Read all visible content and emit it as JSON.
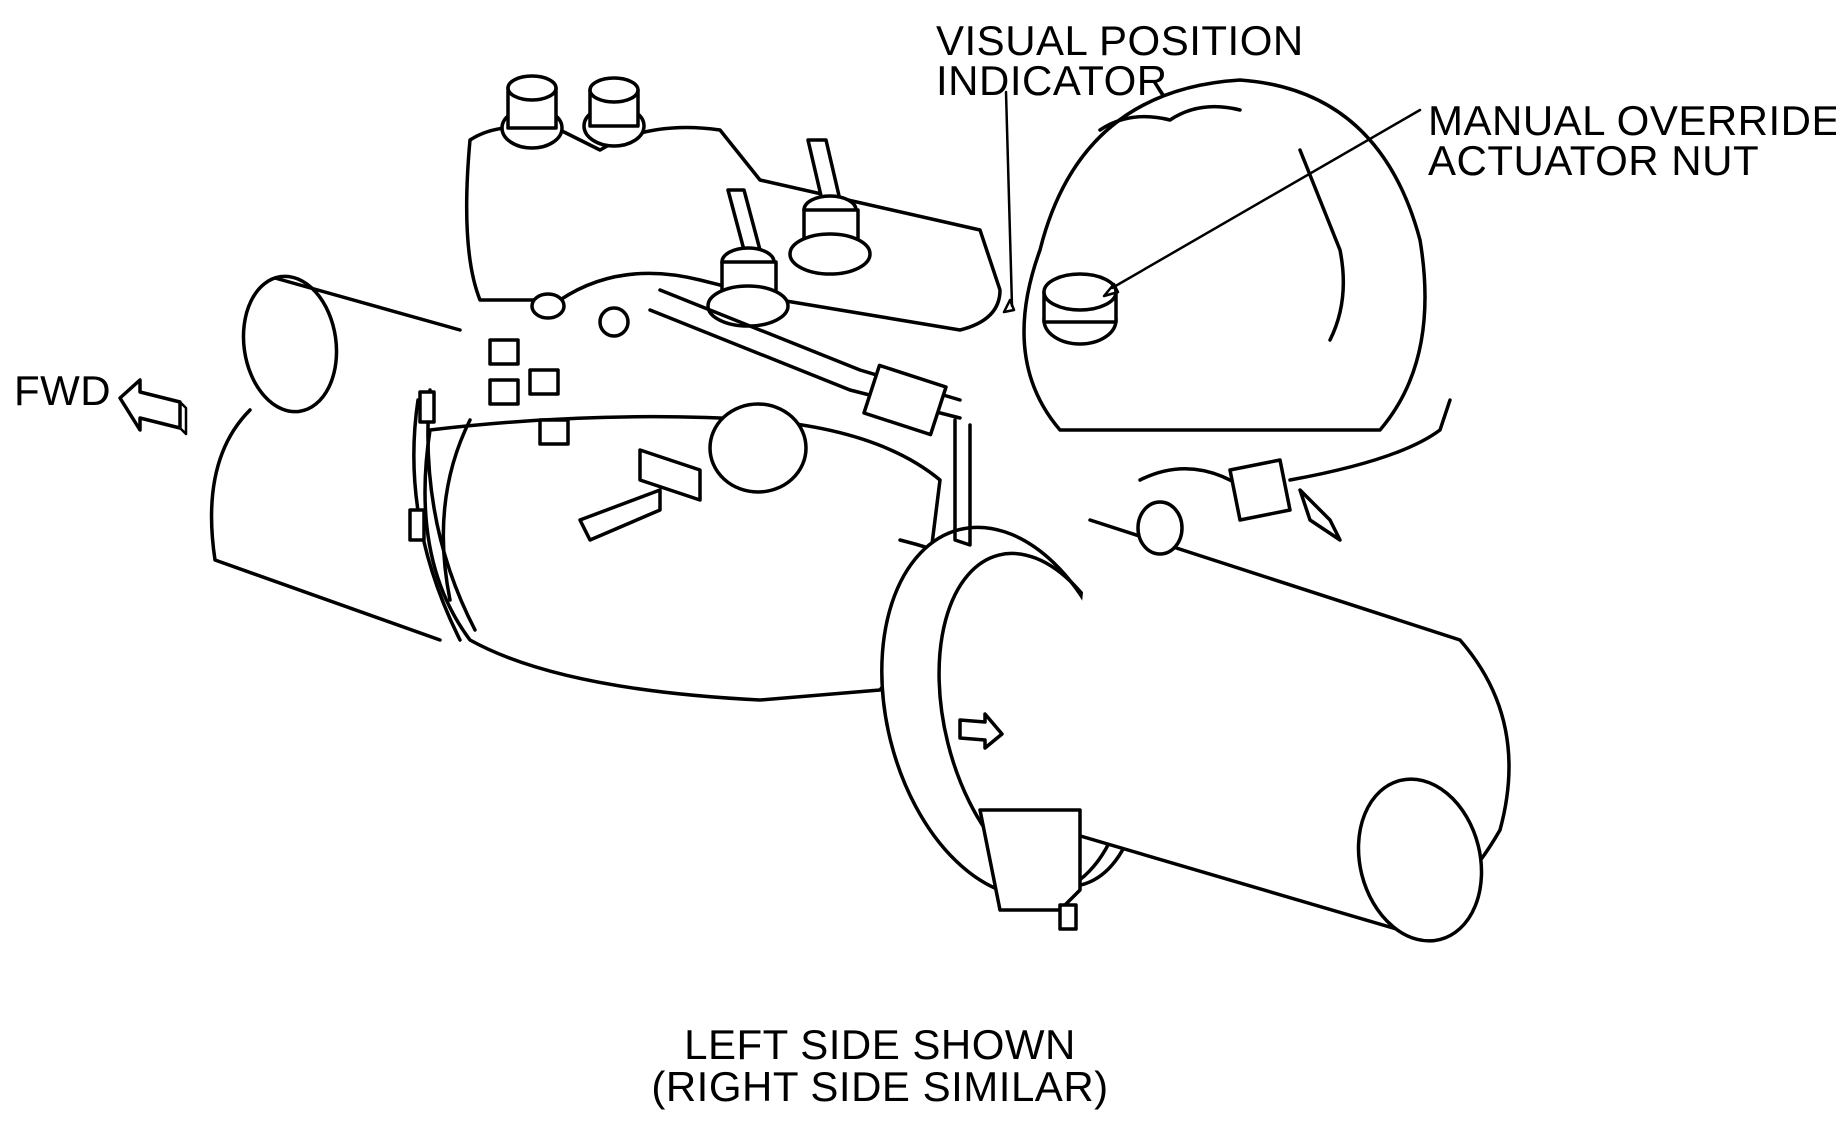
{
  "labels": {
    "visual_position_indicator_line1": "VISUAL POSITION",
    "visual_position_indicator_line2": "INDICATOR",
    "manual_override_line1": "MANUAL OVERRIDE",
    "manual_override_line2": "ACTUATOR NUT",
    "fwd": "FWD",
    "caption_line1": "LEFT SIDE SHOWN",
    "caption_line2": "(RIGHT SIDE SIMILAR)"
  }
}
